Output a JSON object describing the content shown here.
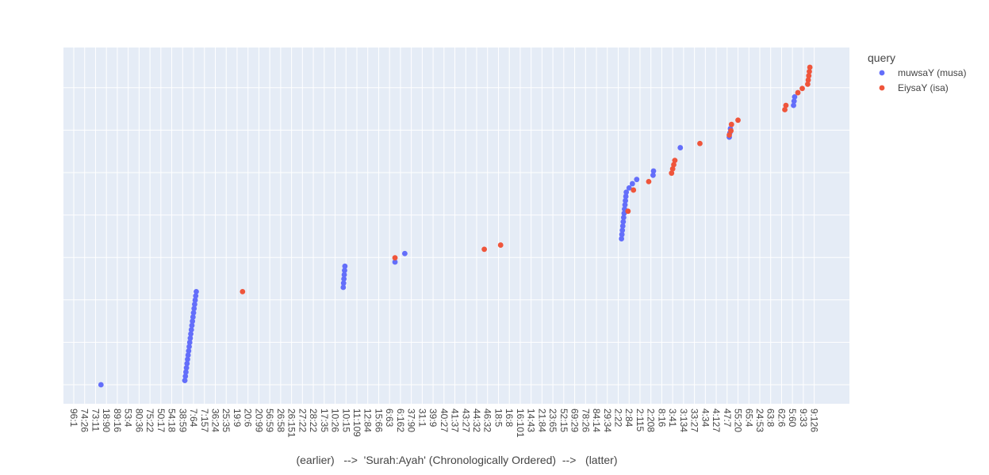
{
  "chart_data": {
    "type": "scatter",
    "xlabel": "(earlier)   -->  'Surah:Ayah' (Chronologically Ordered)  -->   (latter)",
    "legend_title": "query",
    "legend_position": "top-right",
    "grid": true,
    "ylim": [
      -0.5,
      7.7
    ],
    "tick_labels": [
      "96:1",
      "74:26",
      "73:11",
      "18:90",
      "89:16",
      "53:4",
      "80:36",
      "75:22",
      "50:17",
      "54:18",
      "38:59",
      "7:64",
      "7:157",
      "36:24",
      "25:35",
      "19:9",
      "20:6",
      "20:99",
      "56:59",
      "26:58",
      "26:151",
      "27:22",
      "28:22",
      "17:35",
      "10:26",
      "10:15",
      "11:109",
      "12:84",
      "15:66",
      "6:63",
      "6:162",
      "37:90",
      "31:1",
      "39:9",
      "40:27",
      "41:37",
      "43:27",
      "44:32",
      "46:32",
      "18:5",
      "16:8",
      "16:101",
      "14:43",
      "21:84",
      "23:65",
      "52:15",
      "69:29",
      "78:26",
      "84:14",
      "29:34",
      "2:22",
      "2:84",
      "2:115",
      "2:208",
      "8:16",
      "3:41",
      "3:134",
      "33:27",
      "4:34",
      "4:127",
      "47:7",
      "55:20",
      "65:4",
      "24:53",
      "63:8",
      "62:6",
      "5:60",
      "9:33",
      "9:126"
    ],
    "series": [
      {
        "name": "muwsaY (musa)",
        "color": "#636efa",
        "x": [
          2.5,
          10.2,
          10.25,
          10.3,
          10.35,
          10.4,
          10.45,
          10.5,
          10.55,
          10.6,
          10.65,
          10.7,
          10.75,
          10.8,
          10.85,
          10.9,
          10.95,
          11.0,
          11.05,
          11.1,
          11.15,
          11.2,
          11.25,
          24.75,
          24.78,
          24.81,
          24.84,
          24.87,
          24.9,
          29.5,
          30.4,
          50.3,
          50.34,
          50.38,
          50.42,
          50.46,
          50.5,
          50.54,
          50.58,
          50.62,
          50.66,
          50.7,
          50.74,
          51.0,
          51.3,
          51.7,
          53.2,
          53.24,
          55.7,
          60.2,
          60.25,
          60.3,
          66.1,
          66.15,
          66.2
        ],
        "y": [
          0.0,
          0.1,
          0.2,
          0.3,
          0.4,
          0.5,
          0.6,
          0.7,
          0.8,
          0.9,
          1.0,
          1.1,
          1.2,
          1.3,
          1.4,
          1.5,
          1.6,
          1.7,
          1.8,
          1.9,
          2.0,
          2.1,
          2.2,
          2.3,
          2.4,
          2.5,
          2.6,
          2.7,
          2.8,
          2.9,
          3.1,
          3.45,
          3.55,
          3.65,
          3.75,
          3.85,
          3.95,
          4.05,
          4.15,
          4.25,
          4.35,
          4.45,
          4.55,
          4.65,
          4.75,
          4.85,
          4.95,
          5.05,
          5.6,
          5.85,
          5.95,
          6.05,
          6.6,
          6.7,
          6.8
        ]
      },
      {
        "name": "EiysaY (isa)",
        "color": "#ef553b",
        "x": [
          15.5,
          29.5,
          37.7,
          39.2,
          50.9,
          51.4,
          52.8,
          54.9,
          55.0,
          55.1,
          55.2,
          57.5,
          60.2,
          60.35,
          60.4,
          61.0,
          65.3,
          65.4,
          66.5,
          66.9,
          67.4,
          67.45,
          67.5,
          67.55,
          67.6
        ],
        "y": [
          2.2,
          3.0,
          3.2,
          3.3,
          4.1,
          4.6,
          4.8,
          5.0,
          5.1,
          5.2,
          5.3,
          5.7,
          5.9,
          6.0,
          6.15,
          6.25,
          6.5,
          6.6,
          6.9,
          7.0,
          7.1,
          7.2,
          7.3,
          7.4,
          7.5
        ]
      }
    ]
  }
}
